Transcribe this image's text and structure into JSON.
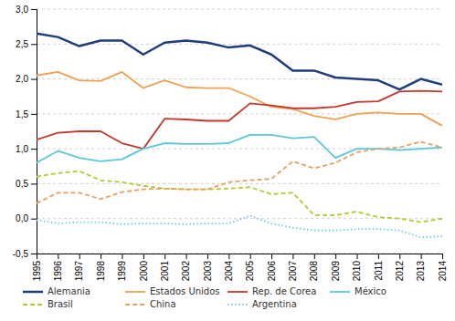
{
  "chart_data": {
    "type": "line",
    "x": [
      1995,
      1996,
      1997,
      1998,
      1999,
      2000,
      2001,
      2002,
      2003,
      2004,
      2005,
      2006,
      2007,
      2008,
      2009,
      2010,
      2011,
      2012,
      2013,
      2014
    ],
    "xlim": [
      1995,
      2014
    ],
    "xticks": [
      1995,
      1996,
      1997,
      1998,
      1999,
      2000,
      2001,
      2002,
      2003,
      2004,
      2005,
      2006,
      2007,
      2008,
      2009,
      2010,
      2011,
      2012,
      2013,
      2014
    ],
    "ylim": [
      -0.5,
      3.0
    ],
    "yticks": [
      {
        "value": -0.5,
        "label": "-0,5"
      },
      {
        "value": 0.0,
        "label": "0,0"
      },
      {
        "value": 0.5,
        "label": "0,5"
      },
      {
        "value": 1.0,
        "label": "1,0"
      },
      {
        "value": 1.5,
        "label": "1,5"
      },
      {
        "value": 2.0,
        "label": "2,0"
      },
      {
        "value": 2.5,
        "label": "2,5"
      },
      {
        "value": 3.0,
        "label": "3,0"
      }
    ],
    "grid": true,
    "legend": "bottom",
    "series": [
      {
        "name": "Alemania",
        "color": "#1f3d7a",
        "line_style": "solid",
        "values": [
          2.65,
          2.6,
          2.47,
          2.55,
          2.55,
          2.35,
          2.52,
          2.55,
          2.52,
          2.45,
          2.48,
          2.35,
          2.12,
          2.12,
          2.02,
          2.0,
          1.98,
          1.85,
          2.0,
          1.92
        ]
      },
      {
        "name": "Estados Unidos",
        "color": "#f0a050",
        "line_style": "solid",
        "values": [
          2.05,
          2.1,
          1.98,
          1.97,
          2.1,
          1.87,
          1.98,
          1.88,
          1.87,
          1.87,
          1.75,
          1.6,
          1.57,
          1.47,
          1.42,
          1.5,
          1.52,
          1.5,
          1.5,
          1.33
        ]
      },
      {
        "name": "Rep. de Corea",
        "color": "#c0392b",
        "line_style": "solid",
        "values": [
          1.13,
          1.23,
          1.25,
          1.25,
          1.08,
          1.0,
          1.43,
          1.42,
          1.4,
          1.4,
          1.65,
          1.62,
          1.58,
          1.58,
          1.6,
          1.67,
          1.68,
          1.82,
          1.83,
          1.82
        ]
      },
      {
        "name": "México",
        "color": "#5bc8d8",
        "line_style": "solid",
        "values": [
          0.8,
          0.97,
          0.87,
          0.82,
          0.85,
          1.0,
          1.08,
          1.07,
          1.07,
          1.08,
          1.2,
          1.2,
          1.15,
          1.17,
          0.87,
          1.0,
          1.0,
          0.98,
          1.0,
          1.02
        ]
      },
      {
        "name": "Brasil",
        "color": "#b8c832",
        "line_style": "dashed",
        "values": [
          0.6,
          0.65,
          0.68,
          0.55,
          0.52,
          0.47,
          0.43,
          0.42,
          0.42,
          0.43,
          0.45,
          0.35,
          0.37,
          0.05,
          0.05,
          0.1,
          0.02,
          0.0,
          -0.05,
          0.0
        ]
      },
      {
        "name": "China",
        "color": "#e8a060",
        "line_style": "dashed",
        "values": [
          0.22,
          0.37,
          0.37,
          0.28,
          0.38,
          0.42,
          0.43,
          0.42,
          0.42,
          0.52,
          0.55,
          0.57,
          0.82,
          0.72,
          0.8,
          0.95,
          1.0,
          1.02,
          1.1,
          1.02
        ]
      },
      {
        "name": "Argentina",
        "color": "#70c8e8",
        "line_style": "dotted",
        "values": [
          -0.02,
          -0.07,
          -0.05,
          -0.05,
          -0.08,
          -0.07,
          -0.07,
          -0.08,
          -0.07,
          -0.07,
          0.04,
          -0.07,
          -0.13,
          -0.17,
          -0.17,
          -0.15,
          -0.15,
          -0.17,
          -0.27,
          -0.25
        ]
      }
    ]
  }
}
